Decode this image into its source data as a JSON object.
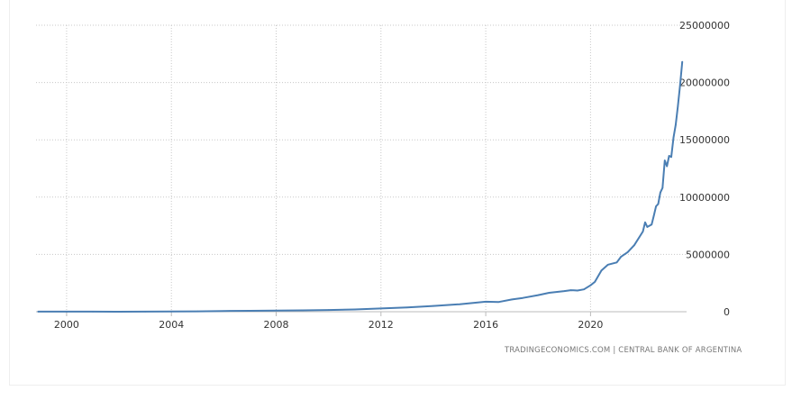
{
  "chart_data": {
    "type": "line",
    "title": "",
    "xlabel": "",
    "ylabel": "",
    "ylim": [
      0,
      25000000
    ],
    "xlim": [
      "1998-11",
      "2023-09"
    ],
    "y_ticks": [
      "0",
      "5000000",
      "10000000",
      "15000000",
      "20000000",
      "25000000"
    ],
    "x_ticks": [
      "2000",
      "2004",
      "2008",
      "2012",
      "2016",
      "2020"
    ],
    "grid": true,
    "color": "#4a7eb3",
    "series": [
      {
        "name": "",
        "points": [
          [
            "1998-12",
            10000
          ],
          [
            "2000-01",
            10000
          ],
          [
            "2001-01",
            10000
          ],
          [
            "2002-01",
            0
          ],
          [
            "2003-01",
            10000
          ],
          [
            "2004-01",
            20000
          ],
          [
            "2005-01",
            30000
          ],
          [
            "2006-01",
            60000
          ],
          [
            "2007-01",
            80000
          ],
          [
            "2008-01",
            100000
          ],
          [
            "2009-01",
            120000
          ],
          [
            "2010-01",
            150000
          ],
          [
            "2011-01",
            200000
          ],
          [
            "2012-01",
            280000
          ],
          [
            "2013-01",
            370000
          ],
          [
            "2014-01",
            500000
          ],
          [
            "2015-01",
            650000
          ],
          [
            "2016-01",
            870000
          ],
          [
            "2016-07",
            850000
          ],
          [
            "2017-01",
            1070000
          ],
          [
            "2017-06",
            1200000
          ],
          [
            "2018-01",
            1450000
          ],
          [
            "2018-06",
            1650000
          ],
          [
            "2019-01",
            1800000
          ],
          [
            "2019-04",
            1880000
          ],
          [
            "2019-07",
            1850000
          ],
          [
            "2019-10",
            1950000
          ],
          [
            "2020-01",
            2300000
          ],
          [
            "2020-03",
            2600000
          ],
          [
            "2020-06",
            3600000
          ],
          [
            "2020-09",
            4100000
          ],
          [
            "2021-01",
            4300000
          ],
          [
            "2021-03",
            4800000
          ],
          [
            "2021-06",
            5200000
          ],
          [
            "2021-09",
            5800000
          ],
          [
            "2022-01",
            7000000
          ],
          [
            "2022-02",
            7800000
          ],
          [
            "2022-03",
            7400000
          ],
          [
            "2022-05",
            7600000
          ],
          [
            "2022-06",
            8400000
          ],
          [
            "2022-07",
            9200000
          ],
          [
            "2022-08",
            9400000
          ],
          [
            "2022-09",
            10400000
          ],
          [
            "2022-10",
            10800000
          ],
          [
            "2022-11",
            13200000
          ],
          [
            "2022-12",
            12700000
          ],
          [
            "2023-01",
            13600000
          ],
          [
            "2023-02",
            13500000
          ],
          [
            "2023-03",
            15200000
          ],
          [
            "2023-04",
            16300000
          ],
          [
            "2023-05",
            17900000
          ],
          [
            "2023-06",
            19700000
          ],
          [
            "2023-07",
            21800000
          ]
        ]
      }
    ]
  },
  "source": "TRADINGECONOMICS.COM  |  CENTRAL BANK OF ARGENTINA"
}
